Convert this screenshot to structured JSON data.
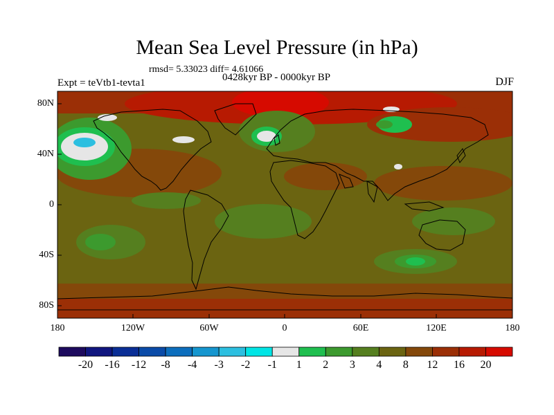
{
  "title": "Mean Sea Level Pressure (in hPa)",
  "stats_text": "rmsd= 5.33023  diff= 4.61066",
  "period_text": "0428kyr BP - 0000kyr BP",
  "experiment_text": "Expt = teVtb1-tevta1",
  "season": "DJF",
  "y_ticks": [
    "80N",
    "40N",
    "0",
    "40S",
    "80S"
  ],
  "x_ticks": [
    "180",
    "120W",
    "60W",
    "0",
    "60E",
    "120E",
    "180"
  ],
  "colorbar": {
    "labels": [
      "-20",
      "-16",
      "-12",
      "-8",
      "-4",
      "-3",
      "-2",
      "-1",
      "1",
      "2",
      "3",
      "4",
      "8",
      "12",
      "16",
      "20"
    ],
    "colors": [
      "#1d0a5e",
      "#10167f",
      "#0a2e96",
      "#0a4ba8",
      "#0c6ebd",
      "#1596cf",
      "#2cbfe0",
      "#00e5e5",
      "#e6e6e6",
      "#1fbf4f",
      "#3c9a2e",
      "#557f1f",
      "#6b6411",
      "#84480a",
      "#9b2f06",
      "#b71a02",
      "#d60a00"
    ]
  }
}
